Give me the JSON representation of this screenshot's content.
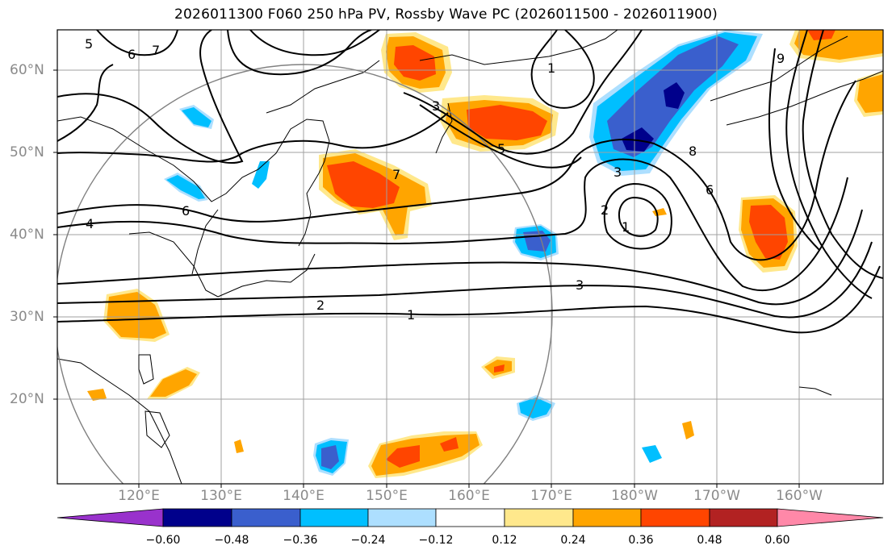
{
  "title": "2026011300 F060 250 hPa PV, Rossby Wave PC (2026011500 - 2026011900)",
  "latitude_labels": [
    "60°N",
    "50°N",
    "40°N",
    "30°N",
    "20°N"
  ],
  "longitude_labels": [
    "120°E",
    "130°E",
    "140°E",
    "150°E",
    "160°E",
    "170°E",
    "180°W",
    "170°W",
    "160°W"
  ],
  "contour_labels": [
    "1",
    "2",
    "3",
    "4",
    "5",
    "6",
    "7",
    "8",
    "9"
  ],
  "colorbar": {
    "tick_labels": [
      "−0.60",
      "−0.48",
      "−0.36",
      "−0.24",
      "−0.12",
      "0.12",
      "0.24",
      "0.36",
      "0.48",
      "0.60"
    ],
    "colors": [
      "#9932CC",
      "#00008B",
      "#3A5FCD",
      "#00BFFF",
      "#ADDFFF",
      "#FFFFFF",
      "#FFE88C",
      "#FFA500",
      "#FF4500",
      "#B22222",
      "#FF88A8"
    ]
  }
}
